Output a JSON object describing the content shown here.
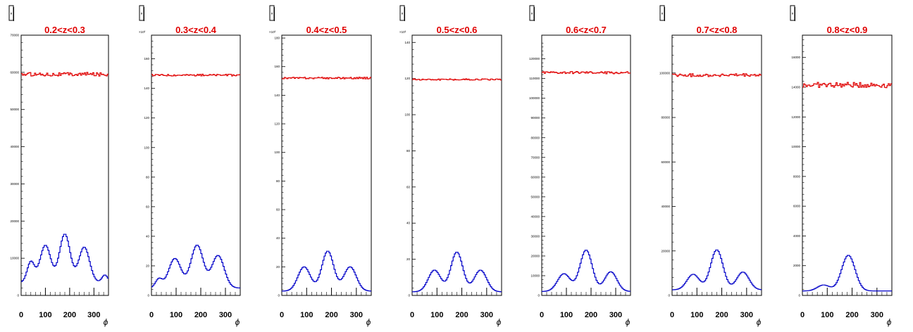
{
  "colors": {
    "accent_red": "#e00000",
    "accent_blue": "#0000c8",
    "frame": "#000000"
  },
  "chart_data": [
    {
      "type": "line",
      "title": "0.2<z<0.3",
      "xlabel": "ϕ",
      "ylabel": "",
      "xlim": [
        0,
        360
      ],
      "ylim": [
        0,
        70000
      ],
      "y_multiplier": "",
      "yticks": [
        0,
        10000,
        20000,
        30000,
        40000,
        50000,
        60000,
        70000
      ],
      "ytick_labels": [
        "0",
        "10000",
        "20000",
        "30000",
        "40000",
        "50000",
        "60000",
        "70000"
      ],
      "xticks": [
        0,
        100,
        200,
        300
      ],
      "xtick_labels": [
        "0",
        "100",
        "200",
        "300"
      ],
      "legend_box_label": "ϕ",
      "series": [
        {
          "color": "#e00000",
          "flat": 59500,
          "noise": 500
        },
        {
          "color": "#0000c8",
          "flat": 3500,
          "peaks": [
            [
              40,
              5500,
              15
            ],
            [
              100,
              10000,
              22
            ],
            [
              180,
              13000,
              22
            ],
            [
              260,
              9500,
              22
            ],
            [
              345,
              2000,
              12
            ]
          ]
        }
      ]
    },
    {
      "type": "line",
      "title": "0.3<z<0.4",
      "xlabel": "ϕ",
      "ylabel": "",
      "xlim": [
        0,
        360
      ],
      "ylim": [
        0,
        176
      ],
      "y_multiplier": "×10³",
      "yticks": [
        0,
        20,
        40,
        60,
        80,
        100,
        120,
        140,
        160
      ],
      "ytick_labels": [
        "0",
        "20",
        "40",
        "60",
        "80",
        "100",
        "120",
        "140",
        "160"
      ],
      "xticks": [
        0,
        100,
        200,
        300
      ],
      "xtick_labels": [
        "0",
        "100",
        "200",
        "300"
      ],
      "legend_box_label": "ϕ",
      "series": [
        {
          "color": "#e00000",
          "flat": 149,
          "noise": 0.6
        },
        {
          "color": "#0000c8",
          "flat": 5,
          "peaks": [
            [
              30,
              6,
              14
            ],
            [
              95,
              20,
              25
            ],
            [
              185,
              29,
              25
            ],
            [
              270,
              22,
              25
            ]
          ]
        }
      ]
    },
    {
      "type": "line",
      "title": "0.4<z<0.5",
      "xlabel": "ϕ",
      "ylabel": "",
      "xlim": [
        0,
        360
      ],
      "ylim": [
        0,
        182
      ],
      "y_multiplier": "×10³",
      "yticks": [
        0,
        20,
        40,
        60,
        80,
        100,
        120,
        140,
        160,
        180
      ],
      "ytick_labels": [
        "0",
        "20",
        "40",
        "60",
        "80",
        "100",
        "120",
        "140",
        "160",
        "180"
      ],
      "xticks": [
        0,
        100,
        200,
        300
      ],
      "xtick_labels": [
        "0",
        "100",
        "200",
        "300"
      ],
      "legend_box_label": "ϕ",
      "series": [
        {
          "color": "#e00000",
          "flat": 152,
          "noise": 0.6
        },
        {
          "color": "#0000c8",
          "flat": 3,
          "peaks": [
            [
              90,
              17,
              25
            ],
            [
              185,
              28,
              24
            ],
            [
              275,
              17,
              25
            ]
          ]
        }
      ]
    },
    {
      "type": "line",
      "title": "0.5<z<0.6",
      "xlabel": "ϕ",
      "ylabel": "",
      "xlim": [
        0,
        360
      ],
      "ylim": [
        0,
        144
      ],
      "y_multiplier": "×10³",
      "yticks": [
        0,
        20,
        40,
        60,
        80,
        100,
        120,
        140
      ],
      "ytick_labels": [
        "0",
        "20",
        "40",
        "60",
        "80",
        "100",
        "120",
        "140"
      ],
      "xticks": [
        0,
        100,
        200,
        300
      ],
      "xtick_labels": [
        "0",
        "100",
        "200",
        "300"
      ],
      "legend_box_label": "ϕ",
      "series": [
        {
          "color": "#e00000",
          "flat": 119.5,
          "noise": 0.4
        },
        {
          "color": "#0000c8",
          "flat": 2,
          "peaks": [
            [
              90,
              12,
              25
            ],
            [
              180,
              22,
              24
            ],
            [
              275,
              12,
              25
            ]
          ]
        }
      ]
    },
    {
      "type": "line",
      "title": "0.6<z<0.7",
      "xlabel": "ϕ",
      "ylabel": "",
      "xlim": [
        0,
        360
      ],
      "ylim": [
        0,
        132000
      ],
      "y_multiplier": "",
      "yticks": [
        0,
        10000,
        20000,
        30000,
        40000,
        50000,
        60000,
        70000,
        80000,
        90000,
        100000,
        110000,
        120000
      ],
      "ytick_labels": [
        "0",
        "10000",
        "20000",
        "30000",
        "40000",
        "50000",
        "60000",
        "70000",
        "80000",
        "90000",
        "100000",
        "110000",
        "120000"
      ],
      "xticks": [
        0,
        100,
        200,
        300
      ],
      "xtick_labels": [
        "0",
        "100",
        "200",
        "300"
      ],
      "legend_box_label": "ϕ",
      "series": [
        {
          "color": "#e00000",
          "flat": 113000,
          "noise": 600
        },
        {
          "color": "#0000c8",
          "flat": 2000,
          "peaks": [
            [
              90,
              9000,
              26
            ],
            [
              180,
              21000,
              25
            ],
            [
              280,
              10000,
              25
            ]
          ]
        }
      ]
    },
    {
      "type": "line",
      "title": "0.7<z<0.8",
      "xlabel": "ϕ",
      "ylabel": "",
      "xlim": [
        0,
        360
      ],
      "ylim": [
        0,
        117000
      ],
      "y_multiplier": "",
      "yticks": [
        0,
        20000,
        40000,
        60000,
        80000,
        100000
      ],
      "ytick_labels": [
        "0",
        "20000",
        "40000",
        "60000",
        "80000",
        "100000"
      ],
      "xticks": [
        0,
        100,
        200,
        300
      ],
      "xtick_labels": [
        "0",
        "100",
        "200",
        "300"
      ],
      "legend_box_label": "ϕ",
      "series": [
        {
          "color": "#e00000",
          "flat": 99000,
          "noise": 700
        },
        {
          "color": "#0000c8",
          "flat": 2500,
          "peaks": [
            [
              85,
              7000,
              25
            ],
            [
              180,
              18000,
              25
            ],
            [
              285,
              8000,
              25
            ]
          ]
        }
      ]
    },
    {
      "type": "line",
      "title": "0.8<z<0.9",
      "xlabel": "ϕ",
      "ylabel": "",
      "xlim": [
        0,
        360
      ],
      "ylim": [
        0,
        17500
      ],
      "y_multiplier": "",
      "yticks": [
        0,
        2000,
        4000,
        6000,
        8000,
        10000,
        12000,
        14000,
        16000
      ],
      "ytick_labels": [
        "0",
        "2000",
        "4000",
        "6000",
        "8000",
        "10000",
        "12000",
        "14000",
        "16000"
      ],
      "xticks": [
        0,
        100,
        200,
        300
      ],
      "xtick_labels": [
        "0",
        "100",
        "200",
        "300"
      ],
      "legend_box_label": "ϕ",
      "series": [
        {
          "color": "#e00000",
          "flat": 14150,
          "noise": 180
        },
        {
          "color": "#0000c8",
          "flat": 300,
          "peaks": [
            [
              85,
              400,
              25
            ],
            [
              185,
              2400,
              27
            ]
          ]
        }
      ]
    }
  ]
}
